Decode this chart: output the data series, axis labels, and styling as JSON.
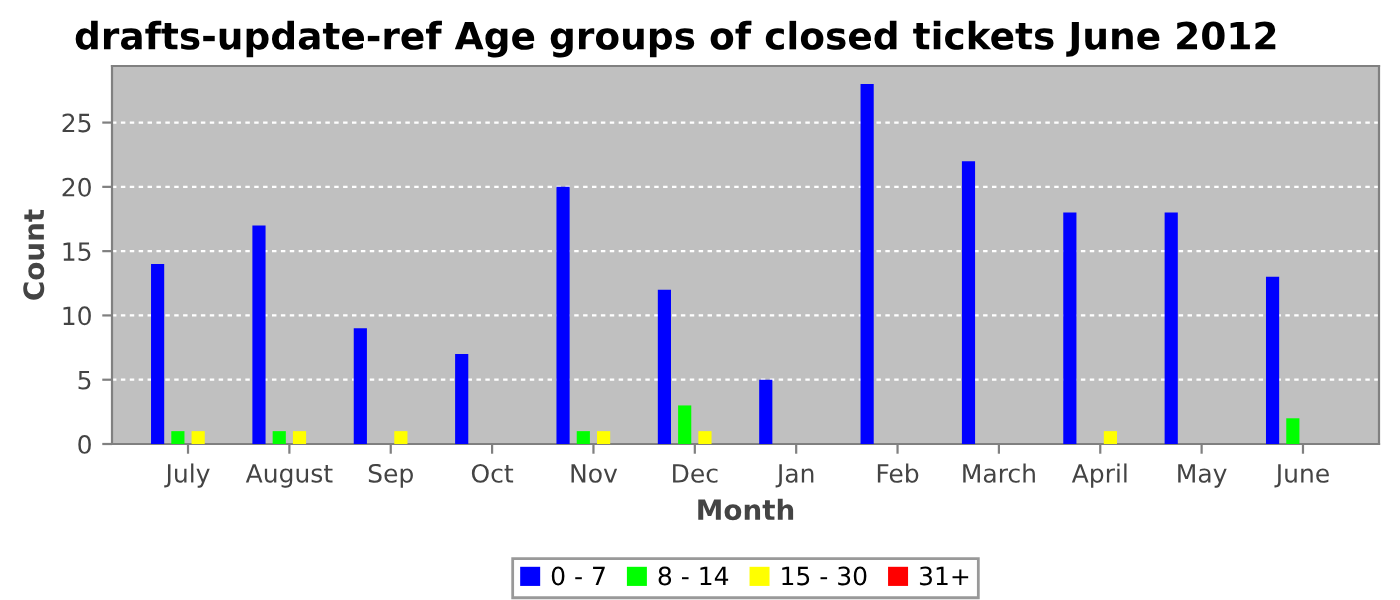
{
  "chart_data": {
    "type": "bar",
    "title": "drafts-update-ref Age groups of closed tickets June 2012",
    "xlabel": "Month",
    "ylabel": "Count",
    "categories": [
      "July",
      "August",
      "Sep",
      "Oct",
      "Nov",
      "Dec",
      "Jan",
      "Feb",
      "March",
      "April",
      "May",
      "June"
    ],
    "series": [
      {
        "name": "0 - 7",
        "color": "#0000ff",
        "values": [
          14,
          17,
          9,
          7,
          20,
          12,
          5,
          28,
          22,
          18,
          18,
          13
        ]
      },
      {
        "name": "8 - 14",
        "color": "#00ff00",
        "values": [
          1,
          1,
          0,
          0,
          1,
          3,
          0,
          0,
          0,
          0,
          0,
          2
        ]
      },
      {
        "name": "15 - 30",
        "color": "#ffff00",
        "values": [
          1,
          1,
          1,
          0,
          1,
          1,
          0,
          0,
          0,
          1,
          0,
          0
        ]
      },
      {
        "name": "31+",
        "color": "#ff0000",
        "values": [
          0,
          0,
          0,
          0,
          0,
          0,
          0,
          0,
          0,
          0,
          0,
          0
        ]
      }
    ],
    "ylim": [
      0,
      29.4
    ],
    "yticks": [
      0,
      5,
      10,
      15,
      20,
      25
    ],
    "grid": "y",
    "legend": "bottom"
  }
}
